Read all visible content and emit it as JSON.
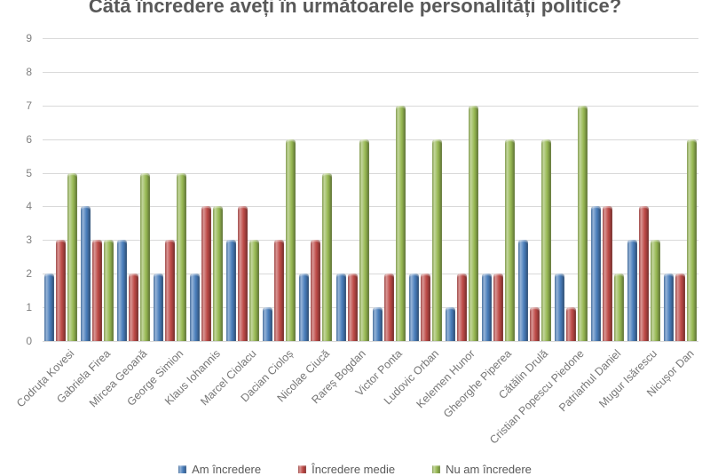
{
  "chart_data": {
    "type": "bar",
    "title": "Câtă încredere aveți în următoarele personalități politice?",
    "categories": [
      "Codruța Kovesi",
      "Gabriela Firea",
      "Mircea Geoană",
      "George Simion",
      "Klaus Iohannis",
      "Marcel Ciolacu",
      "Dacian Cioloș",
      "Nicolae Ciucă",
      "Rareș Bogdan",
      "Victor Ponta",
      "Ludovic Orban",
      "Kelemen Hunor",
      "Gheorghe Piperea",
      "Cătălin Drulă",
      "Cristian Popescu Piedone",
      "Patriarhul Daniel",
      "Mugur Isărescu",
      "Nicușor Dan"
    ],
    "series": [
      {
        "name": "Am încredere",
        "color": "#4A7EBB",
        "values": [
          2,
          4,
          3,
          2,
          2,
          3,
          1,
          2,
          2,
          1,
          2,
          1,
          2,
          3,
          2,
          4,
          3,
          2
        ]
      },
      {
        "name": "Încredere medie",
        "color": "#BE4B48",
        "values": [
          3,
          3,
          2,
          3,
          4,
          4,
          3,
          3,
          2,
          2,
          2,
          2,
          2,
          1,
          1,
          4,
          4,
          2
        ]
      },
      {
        "name": "Nu am încredere",
        "color": "#98B954",
        "values": [
          5,
          3,
          5,
          5,
          4,
          3,
          6,
          5,
          6,
          7,
          6,
          7,
          6,
          6,
          7,
          2,
          3,
          6
        ]
      }
    ],
    "xlabel": "",
    "ylabel": "",
    "ylim": [
      0,
      9
    ],
    "yticks": [
      0,
      1,
      2,
      3,
      4,
      5,
      6,
      7,
      8,
      9
    ],
    "grid": true,
    "legend_position": "bottom",
    "title_color": "#595959",
    "gridline_color": "#d9d9d9",
    "tick_label_color": "#7f7f7f"
  }
}
